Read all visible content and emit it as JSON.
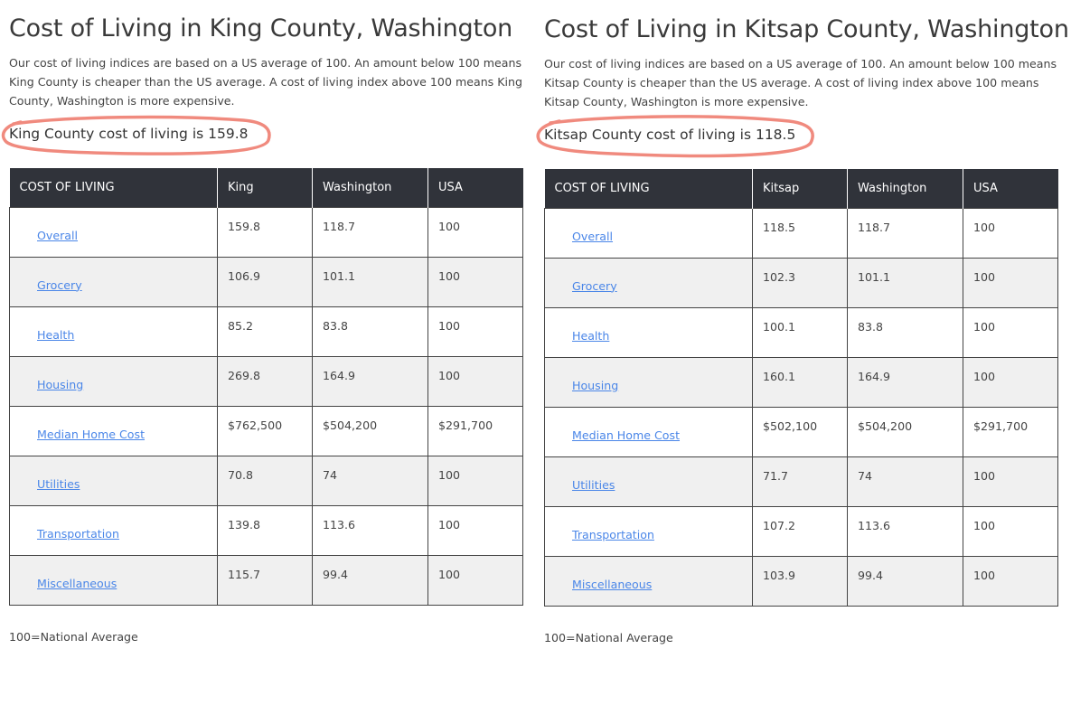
{
  "accent": {
    "header_bg": "#30333a",
    "link": "#4a86e8",
    "highlight_ring": "#f08a7e",
    "row_alt": "#f0f0f0"
  },
  "panels": [
    {
      "title": "Cost of Living in King County, Washington",
      "intro": "Our cost of living indices are based on a US average of 100. An amount below 100 means King County is cheaper than the US average. A cost of living index above 100 means King County, Washington is more expensive.",
      "summary": "King County cost of living is 159.8",
      "headers": [
        "COST OF LIVING",
        "King",
        "Washington",
        "USA"
      ],
      "rows": [
        {
          "label": "Overall",
          "county": "159.8",
          "state": "118.7",
          "usa": "100"
        },
        {
          "label": "Grocery",
          "county": "106.9",
          "state": "101.1",
          "usa": "100"
        },
        {
          "label": "Health",
          "county": "85.2",
          "state": "83.8",
          "usa": "100"
        },
        {
          "label": "Housing",
          "county": "269.8",
          "state": "164.9",
          "usa": "100"
        },
        {
          "label": "Median Home Cost",
          "county": "$762,500",
          "state": "$504,200",
          "usa": "$291,700"
        },
        {
          "label": "Utilities",
          "county": "70.8",
          "state": "74",
          "usa": "100"
        },
        {
          "label": "Transportation",
          "county": "139.8",
          "state": "113.6",
          "usa": "100"
        },
        {
          "label": "Miscellaneous",
          "county": "115.7",
          "state": "99.4",
          "usa": "100"
        }
      ],
      "footnote": "100=National Average"
    },
    {
      "title": "Cost of Living in Kitsap County, Washington",
      "intro": "Our cost of living indices are based on a US average of 100. An amount below 100 means Kitsap County is cheaper than the US average. A cost of living index above 100 means Kitsap County, Washington is more expensive.",
      "summary": "Kitsap County cost of living is 118.5",
      "headers": [
        "COST OF LIVING",
        "Kitsap",
        "Washington",
        "USA"
      ],
      "rows": [
        {
          "label": "Overall",
          "county": "118.5",
          "state": "118.7",
          "usa": "100"
        },
        {
          "label": "Grocery",
          "county": "102.3",
          "state": "101.1",
          "usa": "100"
        },
        {
          "label": "Health",
          "county": "100.1",
          "state": "83.8",
          "usa": "100"
        },
        {
          "label": "Housing",
          "county": "160.1",
          "state": "164.9",
          "usa": "100"
        },
        {
          "label": "Median Home Cost",
          "county": "$502,100",
          "state": "$504,200",
          "usa": "$291,700"
        },
        {
          "label": "Utilities",
          "county": "71.7",
          "state": "74",
          "usa": "100"
        },
        {
          "label": "Transportation",
          "county": "107.2",
          "state": "113.6",
          "usa": "100"
        },
        {
          "label": "Miscellaneous",
          "county": "103.9",
          "state": "99.4",
          "usa": "100"
        }
      ],
      "footnote": "100=National Average"
    }
  ]
}
